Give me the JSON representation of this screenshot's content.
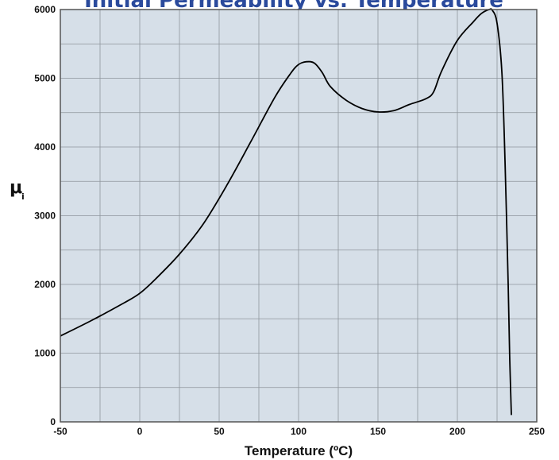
{
  "chart_data": {
    "type": "line",
    "title": "Initial Permeability vs. Temperature",
    "xlabel": "Temperature (ºC)",
    "ylabel": "μ",
    "ylabel_subscript": "i",
    "xlim": [
      -50,
      250
    ],
    "ylim": [
      0,
      6000
    ],
    "x_ticks": [
      -50,
      0,
      50,
      100,
      150,
      200,
      250
    ],
    "y_ticks": [
      0,
      1000,
      2000,
      3000,
      4000,
      5000,
      6000
    ],
    "grid": true,
    "colors": {
      "plot_background": "#d6dfe8",
      "grid": "#8e959c",
      "line": "#000000",
      "title": "#2a4a9c"
    },
    "series": [
      {
        "x": [
          -50,
          -30,
          -10,
          0,
          10,
          25,
          40,
          55,
          70,
          85,
          95,
          100,
          105,
          110,
          115,
          120,
          130,
          140,
          150,
          160,
          170,
          180,
          185,
          190,
          200,
          210,
          215,
          220,
          222,
          225,
          228,
          230,
          232,
          233,
          234
        ],
        "values": [
          1250,
          1480,
          1730,
          1870,
          2080,
          2440,
          2880,
          3450,
          4080,
          4720,
          5070,
          5200,
          5240,
          5220,
          5080,
          4880,
          4680,
          4560,
          4510,
          4530,
          4620,
          4700,
          4800,
          5100,
          5550,
          5820,
          5940,
          6000,
          5990,
          5800,
          5100,
          3800,
          2000,
          900,
          100
        ]
      }
    ]
  }
}
